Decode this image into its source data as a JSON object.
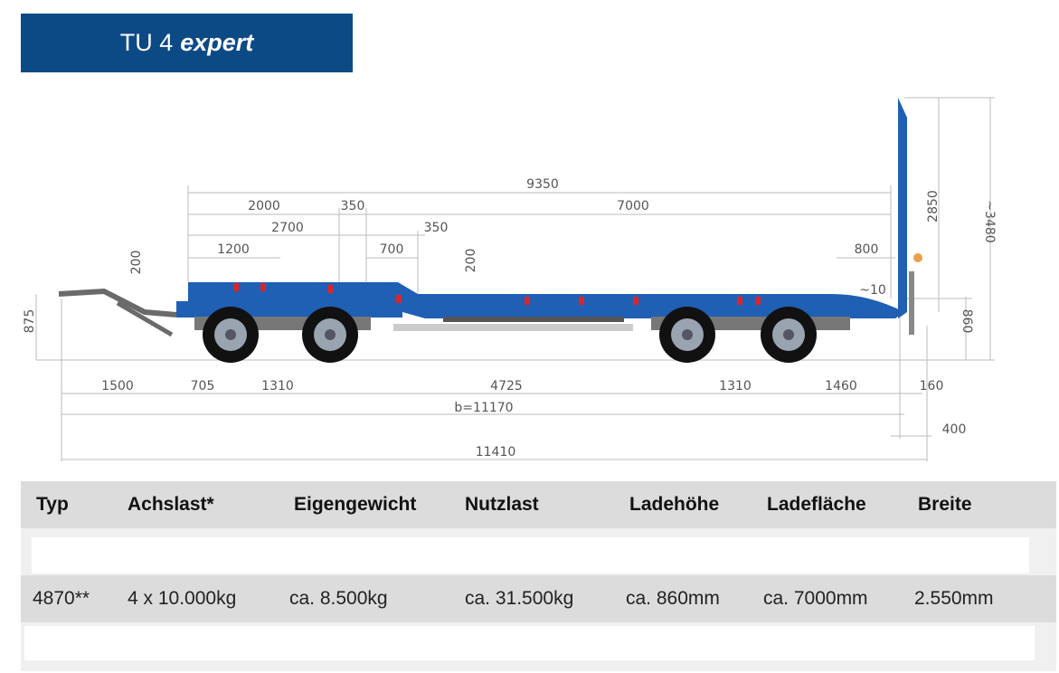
{
  "title": {
    "model": "TU 4",
    "variant": "expert",
    "background": "#0c4a86"
  },
  "drawing": {
    "colors": {
      "frame": "#1f5fb4",
      "tire": "#111111",
      "hub": "#9aa4b0",
      "reflector": "#d9262c"
    },
    "dims": {
      "d9350": "9350",
      "d2000": "2000",
      "d350a": "350",
      "d7000": "7000",
      "d2700": "2700",
      "d350b": "350",
      "d1200": "1200",
      "d700": "700",
      "d200a": "200",
      "d200b": "200",
      "d800": "800",
      "d10": "~10",
      "d875": "875",
      "d860": "860",
      "d2850": "2850",
      "d3480": "~3480",
      "d1500": "1500",
      "d705": "705",
      "d1310a": "1310",
      "d4725": "4725",
      "d1310b": "1310",
      "d1460": "1460",
      "d160": "160",
      "b11170": "b=11170",
      "d400": "400",
      "d11410": "11410"
    }
  },
  "table": {
    "headers": [
      "Typ",
      "Achslast*",
      "Eigengewicht",
      "Nutzlast",
      "Ladehöhe",
      "Ladefläche",
      "Breite"
    ],
    "rows": [
      [
        "4870**",
        "4 x 10.000kg",
        "ca. 8.500kg",
        "ca. 31.500kg",
        "ca. 860mm",
        "ca. 7000mm",
        "2.550mm"
      ]
    ]
  }
}
